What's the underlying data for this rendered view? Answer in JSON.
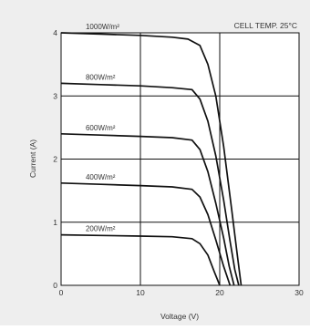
{
  "chart_data": {
    "type": "line",
    "annotation": "CELL TEMP. 25°C",
    "xlabel": "Voltage (V)",
    "ylabel": "Current (A)",
    "xlim": [
      0,
      30
    ],
    "ylim": [
      0,
      4
    ],
    "xticks": [
      "0",
      "10",
      "20",
      "30"
    ],
    "yticks": [
      "0",
      "1",
      "2",
      "3",
      "4"
    ],
    "grid": true,
    "series": [
      {
        "name": "1000W/m²",
        "x": [
          0,
          5,
          10,
          14,
          16,
          17.5,
          18.5,
          19.5,
          20.5,
          21.5,
          22.2,
          22.7
        ],
        "y": [
          4.0,
          3.98,
          3.96,
          3.93,
          3.9,
          3.8,
          3.5,
          3.0,
          2.2,
          1.2,
          0.5,
          0
        ]
      },
      {
        "name": "800W/m²",
        "x": [
          0,
          5,
          10,
          14,
          16.5,
          17.5,
          18.5,
          19.5,
          20.5,
          21.3,
          21.9,
          22.4
        ],
        "y": [
          3.2,
          3.18,
          3.16,
          3.13,
          3.1,
          2.95,
          2.6,
          2.05,
          1.35,
          0.7,
          0.25,
          0
        ]
      },
      {
        "name": "600W/m²",
        "x": [
          0,
          5,
          10,
          14,
          16.5,
          17.5,
          18.5,
          19.5,
          20.5,
          21.2,
          21.8
        ],
        "y": [
          2.4,
          2.38,
          2.36,
          2.34,
          2.3,
          2.15,
          1.8,
          1.3,
          0.75,
          0.3,
          0
        ]
      },
      {
        "name": "400W/m²",
        "x": [
          0,
          5,
          10,
          14,
          16.5,
          17.5,
          18.5,
          19.5,
          20.5,
          21.3
        ],
        "y": [
          1.62,
          1.6,
          1.58,
          1.56,
          1.52,
          1.4,
          1.12,
          0.72,
          0.3,
          0
        ]
      },
      {
        "name": "200W/m²",
        "x": [
          0,
          5,
          10,
          14,
          16.5,
          17.5,
          18.5,
          19.3,
          20.0
        ],
        "y": [
          0.8,
          0.79,
          0.78,
          0.77,
          0.74,
          0.66,
          0.48,
          0.22,
          0
        ]
      }
    ]
  }
}
